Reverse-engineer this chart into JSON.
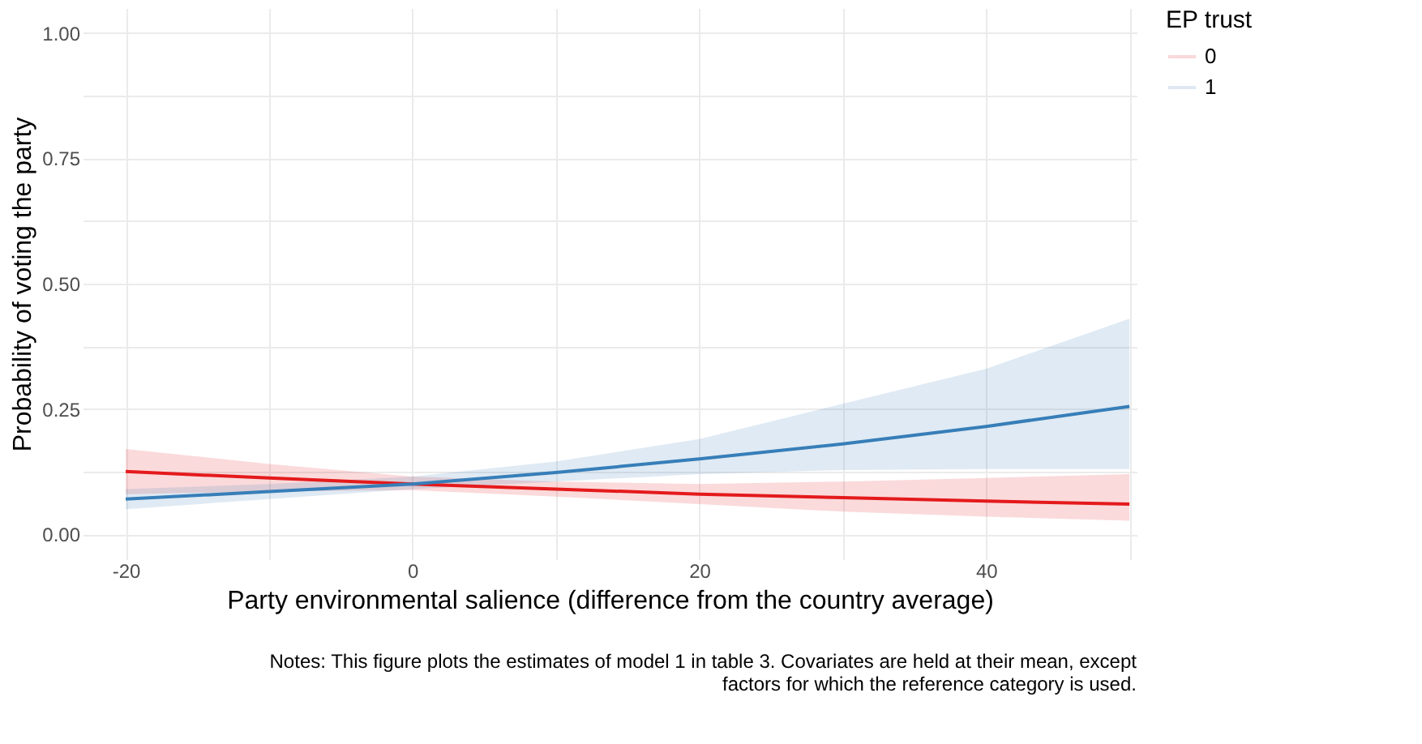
{
  "chart_data": {
    "type": "line",
    "xlabel": "Party environmental salience (difference from the country average)",
    "ylabel": "Probability of voting the party",
    "legend_title": "EP trust",
    "x": [
      -20,
      -10,
      0,
      10,
      20,
      30,
      40,
      50
    ],
    "series": [
      {
        "name": "0",
        "color": "#e41a1c",
        "values": [
          0.125,
          0.112,
          0.1,
          0.09,
          0.08,
          0.073,
          0.066,
          0.06
        ],
        "lower": [
          0.08,
          0.085,
          0.088,
          0.075,
          0.06,
          0.045,
          0.035,
          0.027
        ],
        "upper": [
          0.17,
          0.14,
          0.115,
          0.105,
          0.1,
          0.105,
          0.112,
          0.12
        ]
      },
      {
        "name": "1",
        "color": "#377eb8",
        "values": [
          0.07,
          0.085,
          0.1,
          0.123,
          0.15,
          0.18,
          0.215,
          0.255
        ],
        "lower": [
          0.05,
          0.07,
          0.09,
          0.105,
          0.12,
          0.128,
          0.13,
          0.13
        ],
        "upper": [
          0.09,
          0.1,
          0.115,
          0.145,
          0.19,
          0.26,
          0.33,
          0.43
        ]
      }
    ],
    "xlim": [
      -23,
      50.5
    ],
    "ylim": [
      -0.05,
      1.05
    ],
    "xticks": [
      -20,
      {
        "value": -10,
        "label": null
      },
      0,
      {
        "value": 10,
        "label": null
      },
      20,
      {
        "value": 30,
        "label": null
      },
      40,
      {
        "value": 50,
        "label": null
      }
    ],
    "yticks": [
      {
        "value": 0,
        "label": "0.00"
      },
      {
        "value": 0.125,
        "label": null
      },
      0.25,
      {
        "value": 0.375,
        "label": null
      },
      {
        "value": 0.5,
        "label": "0.50"
      },
      {
        "value": 0.625,
        "label": null
      },
      0.75,
      {
        "value": 0.875,
        "label": null
      },
      {
        "value": 1,
        "label": "1.00"
      }
    ],
    "grid": true,
    "legend": "right",
    "line_style": "solid",
    "annotations": [
      "Notes: This figure plots the estimates of model 1 in table 3. Covariates are held at their mean, except\nfactors  for which the reference category is used."
    ]
  }
}
